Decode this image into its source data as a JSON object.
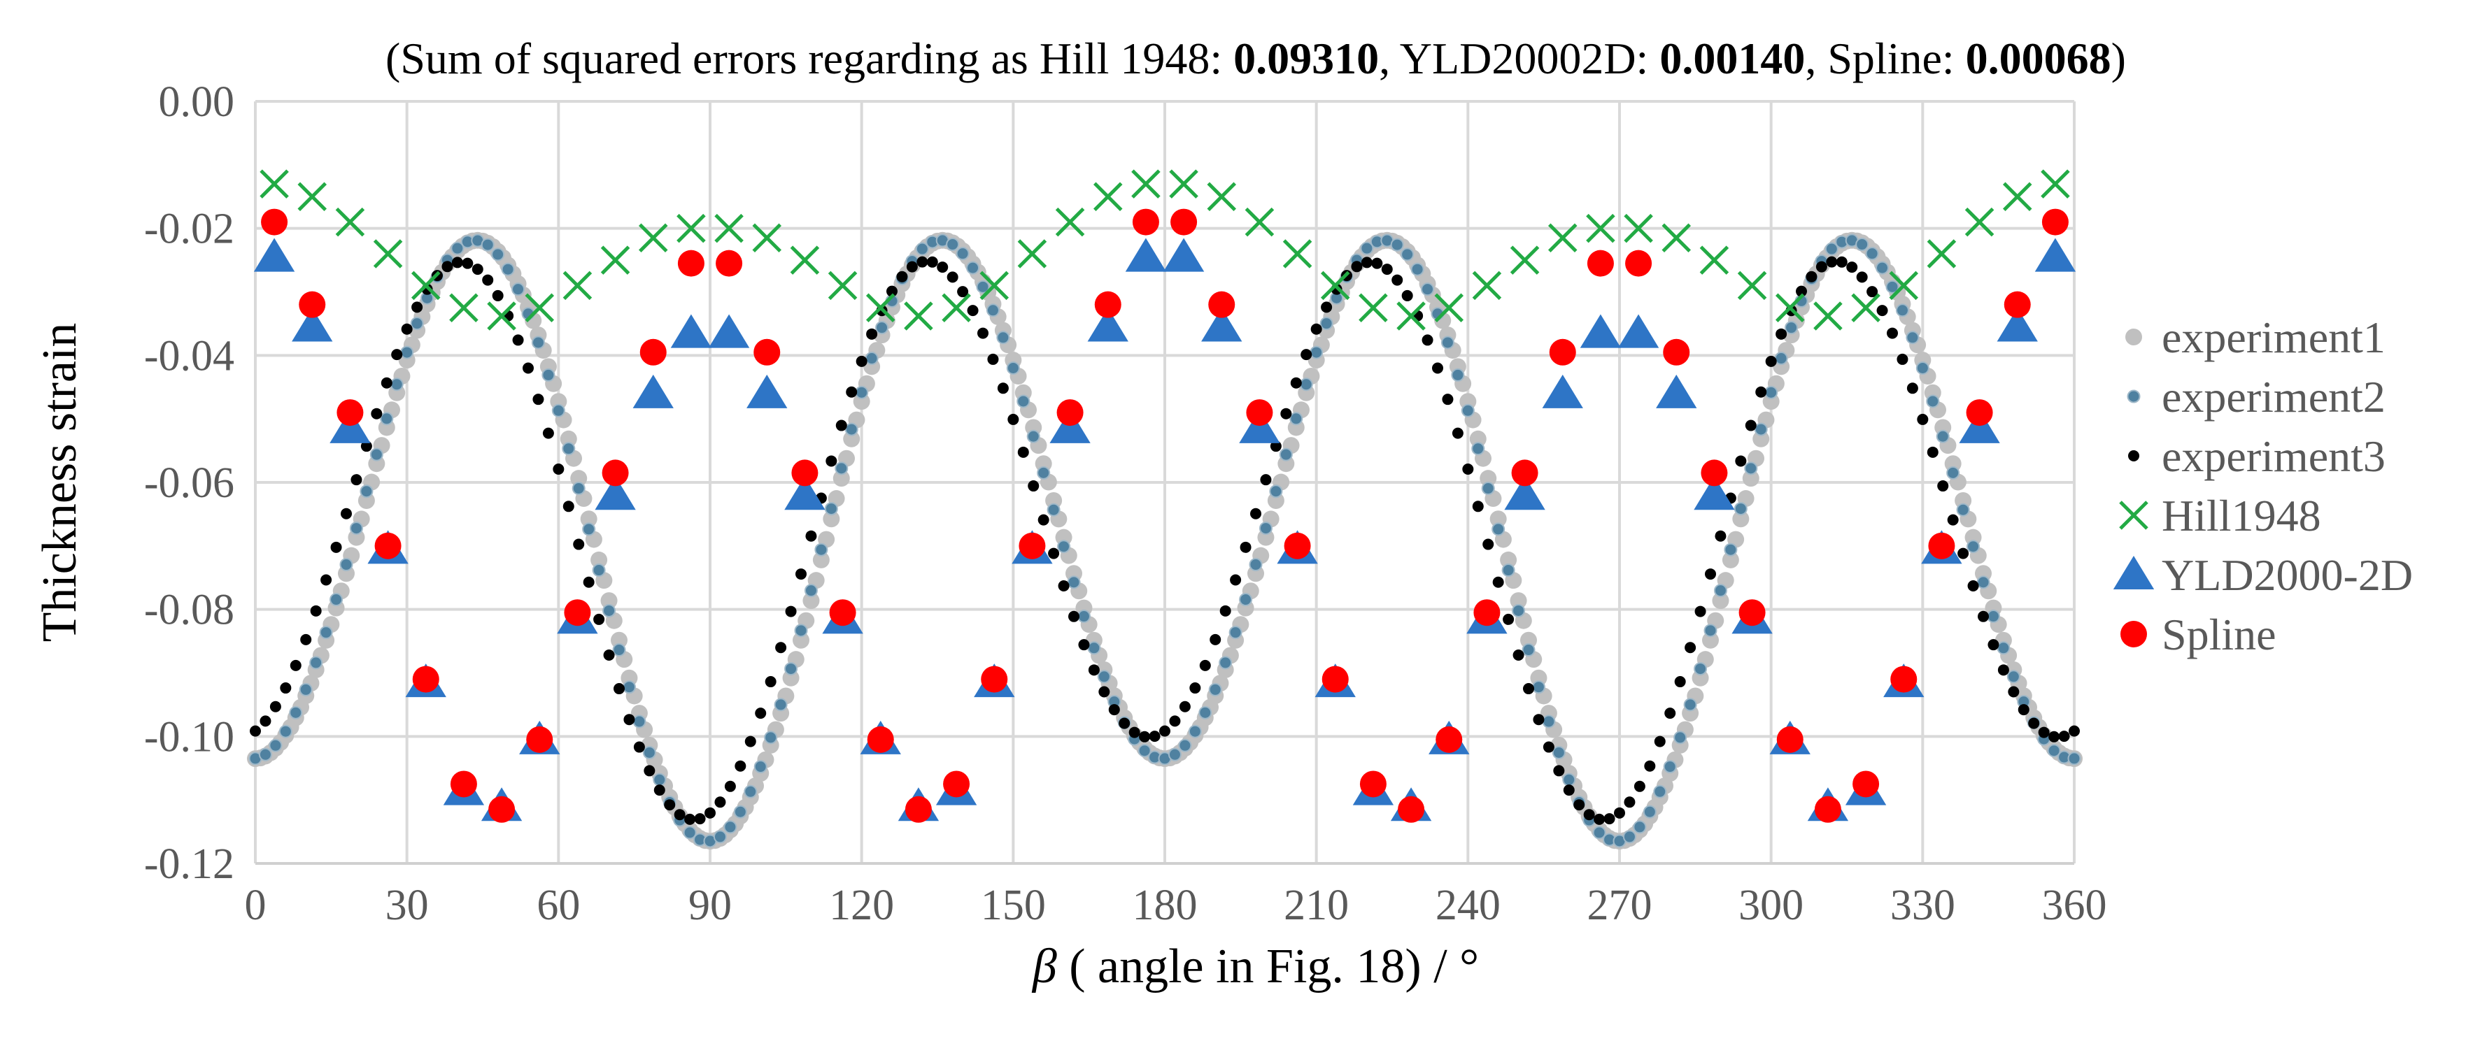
{
  "chart_data": {
    "type": "scatter",
    "title_parts": [
      {
        "text": "(Sum of squared errors regarding as Hill 1948: ",
        "bold": false
      },
      {
        "text": "0.09310",
        "bold": true
      },
      {
        "text": ", YLD20002D: ",
        "bold": false
      },
      {
        "text": "0.00140",
        "bold": true
      },
      {
        "text": ", Spline: ",
        "bold": false
      },
      {
        "text": "0.00068",
        "bold": true
      },
      {
        "text": ")",
        "bold": false
      }
    ],
    "xlabel_symbol": "β",
    "xlabel": " ( angle in Fig. 18) / °",
    "ylabel": "Thickness strain",
    "xlim": [
      0,
      360
    ],
    "ylim": [
      -0.12,
      0.0
    ],
    "x_ticks": [
      0,
      30,
      60,
      90,
      120,
      150,
      180,
      210,
      240,
      270,
      300,
      330,
      360
    ],
    "y_ticks": [
      0.0,
      -0.02,
      -0.04,
      -0.06,
      -0.08,
      -0.1,
      -0.12
    ],
    "y_tick_labels": [
      "0.00",
      "-0.02",
      "-0.04",
      "-0.06",
      "-0.08",
      "-0.10",
      "-0.12"
    ],
    "grid": true,
    "legend_position": "right",
    "colors": {
      "experiment1": "#c0c0c0",
      "experiment2": "#4f81a0",
      "experiment3": "#000000",
      "hill": "#22aa44",
      "yld": "#2e75c6",
      "spline": "#ff0000",
      "grid": "#d9d9d9"
    },
    "series": [
      {
        "name": "experiment1",
        "marker": "dot-light",
        "model": "experiment",
        "params": {
          "d1": 0.0,
          "d3": 0.0,
          "step": 1.0
        }
      },
      {
        "name": "experiment2",
        "marker": "dot-teal",
        "model": "experiment",
        "params": {
          "d1": 0.5,
          "d3": 0.0,
          "step": 2.0
        }
      },
      {
        "name": "experiment3",
        "marker": "dot-black",
        "model": "experiment",
        "params": {
          "d1": 3.5,
          "d3": 7.0,
          "step": 2.0
        }
      },
      {
        "name": "Hill1948",
        "marker": "x",
        "x": [
          3.75,
          11.25,
          18.75,
          26.25,
          33.75,
          41.25,
          48.75,
          56.25,
          63.75,
          71.25,
          78.75,
          86.25,
          93.75,
          101.25,
          108.75,
          116.25,
          123.75,
          131.25,
          138.75,
          146.25,
          153.75,
          161.25,
          168.75,
          176.25,
          183.75,
          191.25,
          198.75,
          206.25,
          213.75,
          221.25,
          228.75,
          236.25,
          243.75,
          251.25,
          258.75,
          266.25,
          273.75,
          281.25,
          288.75,
          296.25,
          303.75,
          311.25,
          318.75,
          326.25,
          333.75,
          341.25,
          348.75,
          356.25
        ],
        "y": [
          -0.013,
          -0.015,
          -0.019,
          -0.024,
          -0.029,
          -0.0325,
          -0.0338,
          -0.0325,
          -0.029,
          -0.025,
          -0.0215,
          -0.02,
          -0.02,
          -0.0215,
          -0.025,
          -0.029,
          -0.0325,
          -0.0338,
          -0.0325,
          -0.029,
          -0.024,
          -0.019,
          -0.015,
          -0.013,
          -0.013,
          -0.015,
          -0.019,
          -0.024,
          -0.029,
          -0.0325,
          -0.0338,
          -0.0325,
          -0.029,
          -0.025,
          -0.0215,
          -0.02,
          -0.02,
          -0.0215,
          -0.025,
          -0.029,
          -0.0325,
          -0.0338,
          -0.0325,
          -0.029,
          -0.024,
          -0.019,
          -0.015,
          -0.013
        ]
      },
      {
        "name": "YLD2000-2D",
        "marker": "triangle",
        "x": [
          3.75,
          11.25,
          18.75,
          26.25,
          33.75,
          41.25,
          48.75,
          56.25,
          63.75,
          71.25,
          78.75,
          86.25,
          93.75,
          101.25,
          108.75,
          116.25,
          123.75,
          131.25,
          138.75,
          146.25,
          153.75,
          161.25,
          168.75,
          176.25,
          183.75,
          191.25,
          198.75,
          206.25,
          213.75,
          221.25,
          228.75,
          236.25,
          243.75,
          251.25,
          258.75,
          266.25,
          273.75,
          281.25,
          288.75,
          296.25,
          303.75,
          311.25,
          318.75,
          326.25,
          333.75,
          341.25,
          348.75,
          356.25
        ],
        "y": [
          -0.0245,
          -0.0355,
          -0.0515,
          -0.0705,
          -0.0915,
          -0.1085,
          -0.111,
          -0.1005,
          -0.0815,
          -0.062,
          -0.046,
          -0.0365,
          -0.0365,
          -0.046,
          -0.062,
          -0.0815,
          -0.1005,
          -0.111,
          -0.1085,
          -0.0915,
          -0.0705,
          -0.0515,
          -0.0355,
          -0.0245,
          -0.0245,
          -0.0355,
          -0.0515,
          -0.0705,
          -0.0915,
          -0.1085,
          -0.111,
          -0.1005,
          -0.0815,
          -0.062,
          -0.046,
          -0.0365,
          -0.0365,
          -0.046,
          -0.062,
          -0.0815,
          -0.1005,
          -0.111,
          -0.1085,
          -0.0915,
          -0.0705,
          -0.0515,
          -0.0355,
          -0.0245
        ]
      },
      {
        "name": "Spline",
        "marker": "circle",
        "x": [
          3.75,
          11.25,
          18.75,
          26.25,
          33.75,
          41.25,
          48.75,
          56.25,
          63.75,
          71.25,
          78.75,
          86.25,
          93.75,
          101.25,
          108.75,
          116.25,
          123.75,
          131.25,
          138.75,
          146.25,
          153.75,
          161.25,
          168.75,
          176.25,
          183.75,
          191.25,
          198.75,
          206.25,
          213.75,
          221.25,
          228.75,
          236.25,
          243.75,
          251.25,
          258.75,
          266.25,
          273.75,
          281.25,
          288.75,
          296.25,
          303.75,
          311.25,
          318.75,
          326.25,
          333.75,
          341.25,
          348.75,
          356.25
        ],
        "y": [
          -0.019,
          -0.032,
          -0.049,
          -0.07,
          -0.091,
          -0.1075,
          -0.1115,
          -0.1005,
          -0.0805,
          -0.0585,
          -0.0395,
          -0.0255,
          -0.0255,
          -0.0395,
          -0.0585,
          -0.0805,
          -0.1005,
          -0.1115,
          -0.1075,
          -0.091,
          -0.07,
          -0.049,
          -0.032,
          -0.019,
          -0.019,
          -0.032,
          -0.049,
          -0.07,
          -0.091,
          -0.1075,
          -0.1115,
          -0.1005,
          -0.0805,
          -0.0585,
          -0.0395,
          -0.0255,
          -0.0255,
          -0.0395,
          -0.0585,
          -0.0805,
          -0.1005,
          -0.1115,
          -0.1075,
          -0.091,
          -0.07,
          -0.049,
          -0.032,
          -0.019
        ]
      }
    ]
  },
  "legend": {
    "items": [
      {
        "label": "experiment1",
        "marker": "dot-light"
      },
      {
        "label": "experiment2",
        "marker": "dot-teal"
      },
      {
        "label": "experiment3",
        "marker": "dot-black"
      },
      {
        "label": "Hill1948",
        "marker": "x"
      },
      {
        "label": "YLD2000-2D",
        "marker": "triangle"
      },
      {
        "label": "Spline",
        "marker": "circle"
      }
    ]
  }
}
